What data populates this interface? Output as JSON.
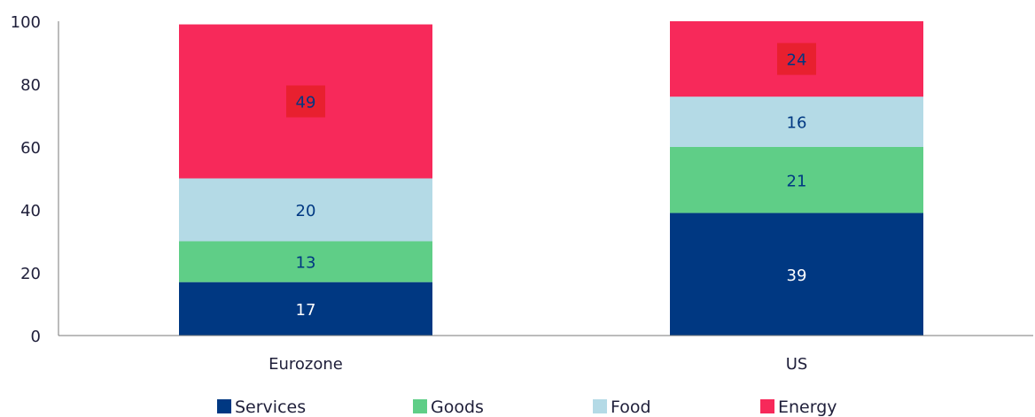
{
  "chart_data": {
    "type": "bar",
    "stacked": true,
    "categories": [
      "Eurozone",
      "US"
    ],
    "series": [
      {
        "name": "Services",
        "color": "#003882",
        "values": [
          17,
          39
        ]
      },
      {
        "name": "Goods",
        "color": "#5fce87",
        "values": [
          13,
          21
        ]
      },
      {
        "name": "Food",
        "color": "#b4dae6",
        "values": [
          20,
          16
        ]
      },
      {
        "name": "Energy",
        "color": "#f7295a",
        "values": [
          49,
          24
        ]
      }
    ],
    "data_labels": [
      [
        "17",
        "39"
      ],
      [
        "13",
        "21"
      ],
      [
        "20",
        "16"
      ],
      [
        "49",
        "24"
      ]
    ],
    "label_colors": [
      "#ffffff",
      "#003882",
      "#003882",
      "#003882"
    ],
    "highlight_color": "#e8202f",
    "ylim": [
      0,
      100
    ],
    "yticks": [
      "0",
      "20",
      "40",
      "60",
      "80",
      "100"
    ],
    "title": "",
    "xlabel": "",
    "ylabel": "",
    "legend_position": "bottom",
    "grid": false
  }
}
